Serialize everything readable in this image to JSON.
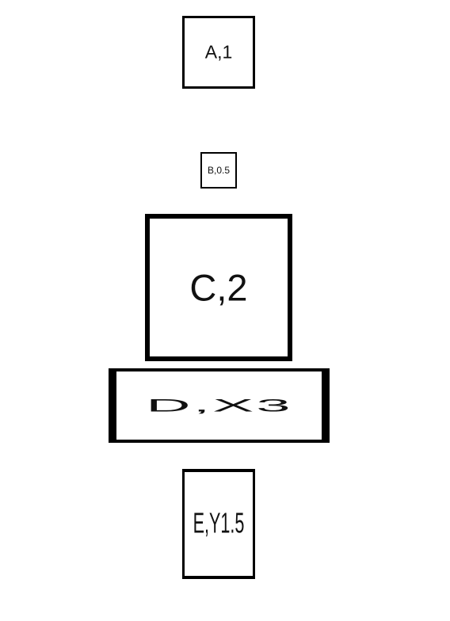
{
  "boxes": [
    {
      "id": "a",
      "label": "A,1"
    },
    {
      "id": "b",
      "label": "B,0.5"
    },
    {
      "id": "c",
      "label": "C,2"
    },
    {
      "id": "d",
      "label": "D,X3"
    },
    {
      "id": "e",
      "label": "E,Y1.5"
    }
  ],
  "colors": {
    "background": "#ffffff",
    "border": "#000000",
    "text": "#111111"
  }
}
